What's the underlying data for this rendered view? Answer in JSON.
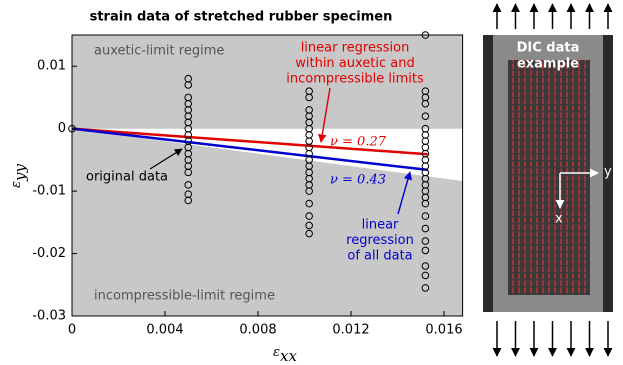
{
  "chart_data": {
    "type": "scatter",
    "title": "strain data of stretched rubber specimen",
    "xlabel": [
      "ε",
      "xx"
    ],
    "ylabel": [
      "ε",
      "yy"
    ],
    "xlim": [
      0,
      0.0168
    ],
    "ylim": [
      -0.03,
      0.015
    ],
    "xticks": [
      0,
      0.004,
      0.008,
      0.012,
      0.016
    ],
    "yticks": [
      0.01,
      0,
      -0.01,
      -0.02,
      -0.03
    ],
    "regions": [
      "auxetic-limit regime",
      "incompressible-limit regime"
    ],
    "series": [
      {
        "name": "original data",
        "color": "#000000",
        "x": [
          0,
          0.005,
          0.005,
          0.005,
          0.005,
          0.005,
          0.005,
          0.005,
          0.005,
          0.005,
          0.005,
          0.005,
          0.005,
          0.005,
          0.005,
          0.005,
          0.005,
          0.005,
          0.005,
          0.0102,
          0.0102,
          0.0102,
          0.0102,
          0.0102,
          0.0102,
          0.0102,
          0.0102,
          0.0102,
          0.0102,
          0.0102,
          0.0102,
          0.0102,
          0.0102,
          0.0102,
          0.0102,
          0.0102,
          0.0102,
          0.0102,
          0.0102,
          0.0152,
          0.0152,
          0.0152,
          0.0152,
          0.0152,
          0.0152,
          0.0152,
          0.0152,
          0.0152,
          0.0152,
          0.0152,
          0.0152,
          0.0152,
          0.0152,
          0.0152,
          0.0152,
          0.0152,
          0.0152,
          0.0152,
          0.0152,
          0.0152,
          0.0152,
          0.0152,
          0.0152,
          0.0152
        ],
        "values": [
          0,
          0.008,
          0.007,
          0.005,
          0.004,
          0.003,
          0.002,
          0.001,
          0,
          -0.001,
          -0.002,
          -0.003,
          -0.004,
          -0.005,
          -0.006,
          -0.007,
          -0.009,
          -0.0105,
          -0.0115,
          0.006,
          0.005,
          0.003,
          0.002,
          0.001,
          0,
          -0.001,
          -0.002,
          -0.003,
          -0.004,
          -0.005,
          -0.006,
          -0.007,
          -0.008,
          -0.009,
          -0.01,
          -0.012,
          -0.014,
          -0.0155,
          -0.0168,
          0.015,
          0.006,
          0.005,
          0.004,
          0.002,
          0,
          -0.001,
          -0.002,
          -0.003,
          -0.004,
          -0.005,
          -0.006,
          -0.007,
          -0.008,
          -0.009,
          -0.01,
          -0.011,
          -0.012,
          -0.014,
          -0.016,
          -0.018,
          -0.0195,
          -0.022,
          -0.0235,
          -0.0255
        ]
      },
      {
        "name": [
          "linear regression",
          "within auxetic and",
          "incompressible limits"
        ],
        "label": "ν = 0.27",
        "color": "#e00000",
        "x": [
          0,
          0.0153
        ],
        "values": [
          0,
          -0.0041
        ]
      },
      {
        "name": [
          "linear",
          "regression",
          "of all data"
        ],
        "label": "ν = 0.43",
        "color": "#0000d0",
        "x": [
          0,
          0.0153
        ],
        "values": [
          0,
          -0.0066
        ]
      }
    ]
  },
  "inset": {
    "title": [
      "DIC data",
      "example"
    ],
    "axes": [
      "y",
      "x"
    ]
  }
}
